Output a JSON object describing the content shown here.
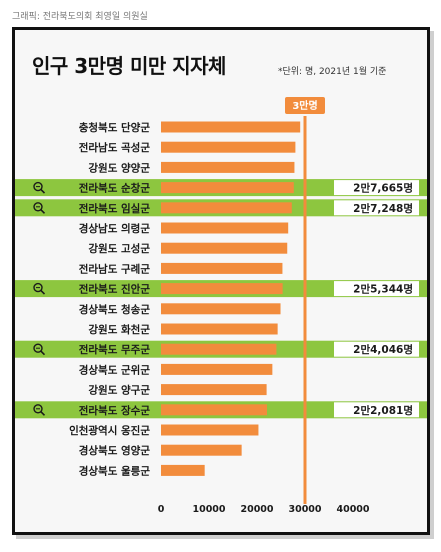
{
  "credit": "그래픽: 전라북도의회 최영일 의원실",
  "title": "인구 3만명 미만 지자체",
  "note": "*단위: 명, 2021년 1월 기준",
  "colors": {
    "bar": "#f28c3c",
    "highlight_band": "#8dc63f",
    "reference_line": "#f28c3c",
    "reference_badge": "#f28c3c",
    "value_label_bg": "#ffffff"
  },
  "chart_data": {
    "type": "bar",
    "orientation": "horizontal",
    "categories": [
      "충청북도 단양군",
      "전라남도 곡성군",
      "강원도 양양군",
      "전라북도 순창군",
      "전라북도 임실군",
      "경상남도 의령군",
      "강원도 고성군",
      "전라남도 구례군",
      "전라북도 진안군",
      "경상북도 청송군",
      "강원도 화천군",
      "전라북도 무주군",
      "경상북도 군위군",
      "강원도 양구군",
      "전라북도 장수군",
      "인천광역시 옹진군",
      "경상북도 영양군",
      "경상북도 울릉군"
    ],
    "values": [
      29000,
      28000,
      27800,
      27665,
      27248,
      26500,
      26300,
      25300,
      25344,
      24900,
      24300,
      24046,
      23200,
      22000,
      22081,
      20300,
      16800,
      9100
    ],
    "highlighted": [
      "전라북도 순창군",
      "전라북도 임실군",
      "전라북도 진안군",
      "전라북도 무주군",
      "전라북도 장수군"
    ],
    "value_labels": {
      "전라북도 순창군": "2만7,665명",
      "전라북도 임실군": "2만7,248명",
      "전라북도 진안군": "2만5,344명",
      "전라북도 무주군": "2만4,046명",
      "전라북도 장수군": "2만2,081명"
    },
    "reference_line": {
      "value": 30000,
      "label": "3만명"
    },
    "x_ticks": [
      0,
      10000,
      20000,
      30000,
      40000
    ],
    "x_tick_labels": [
      "0",
      "10000",
      "20000",
      "30000",
      "40000"
    ],
    "xlim": [
      0,
      40000
    ],
    "grid": false
  }
}
